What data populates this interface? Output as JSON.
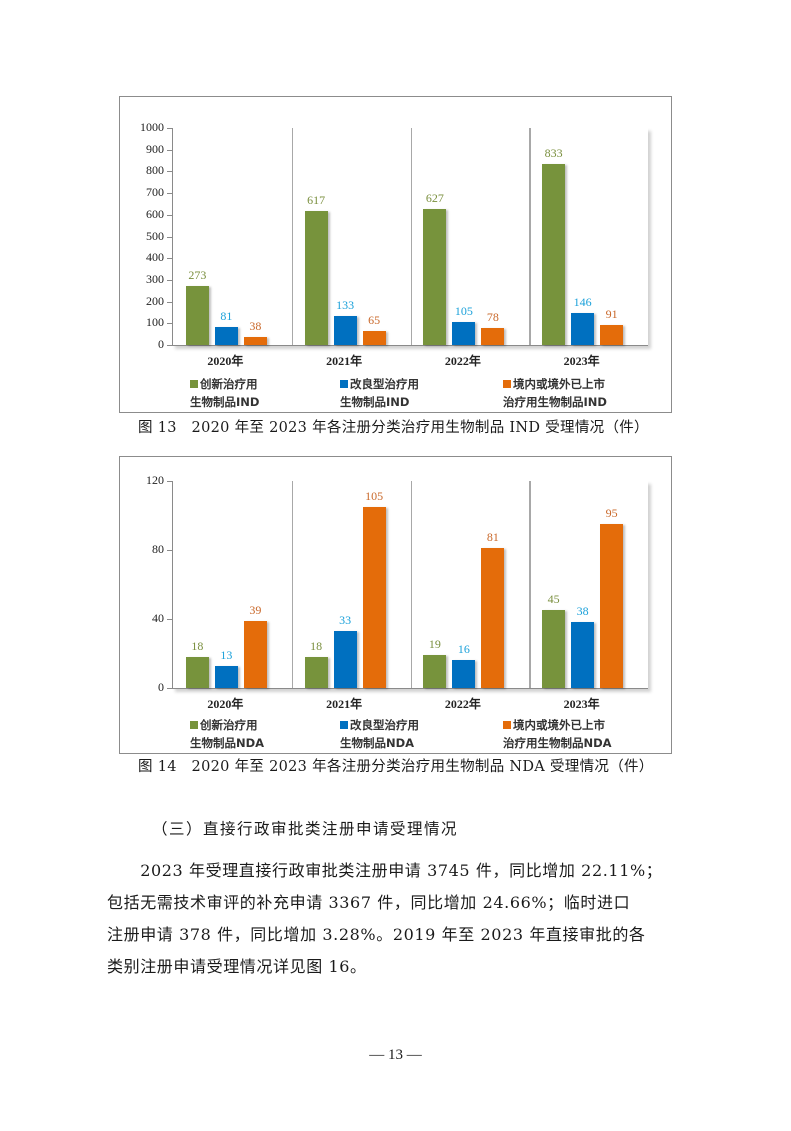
{
  "colors": {
    "series_innovative": "#77933C",
    "series_improved": "#0070C0",
    "series_marketed": "#E46C0A",
    "label_innovative": "#7A8F3E",
    "label_improved": "#1BA1DA",
    "label_marketed": "#C9682A"
  },
  "chart_data": [
    {
      "type": "bar",
      "title": "图 13　2020 年至 2023 年各注册分类治疗用生物制品 IND 受理情况（件）",
      "categories": [
        "2020年",
        "2021年",
        "2022年",
        "2023年"
      ],
      "series": [
        {
          "name": "创新治疗用生物制品IND",
          "values": [
            273,
            617,
            627,
            833
          ]
        },
        {
          "name": "改良型治疗用生物制品IND",
          "values": [
            81,
            133,
            105,
            146
          ]
        },
        {
          "name": "境内或境外已上市治疗用生物制品IND",
          "values": [
            38,
            65,
            78,
            91
          ]
        }
      ],
      "xlabel": "",
      "ylabel": "",
      "ylim": [
        0,
        1000
      ],
      "yticks": [
        "1000",
        "900",
        "800",
        "700",
        "600",
        "500",
        "400",
        "300",
        "200",
        "100",
        "0"
      ],
      "legend_position": "bottom",
      "grid": false
    },
    {
      "type": "bar",
      "title": "图 14　2020 年至 2023 年各注册分类治疗用生物制品 NDA 受理情况（件）",
      "categories": [
        "2020年",
        "2021年",
        "2022年",
        "2023年"
      ],
      "series": [
        {
          "name": "创新治疗用生物制品NDA",
          "values": [
            18,
            18,
            19,
            45
          ]
        },
        {
          "name": "改良型治疗用生物制品NDA",
          "values": [
            13,
            33,
            16,
            38
          ]
        },
        {
          "name": "境内或境外已上市治疗用生物制品NDA",
          "values": [
            39,
            105,
            81,
            95
          ]
        }
      ],
      "xlabel": "",
      "ylabel": "",
      "ylim": [
        0,
        120
      ],
      "yticks": [
        "120",
        "80",
        "40",
        "0"
      ],
      "legend_position": "bottom",
      "grid": false
    }
  ],
  "figure13": {
    "caption": "图 13　2020 年至 2023 年各注册分类治疗用生物制品 IND 受理情况（件）",
    "yticks": [
      "1000",
      "900",
      "800",
      "700",
      "600",
      "500",
      "400",
      "300",
      "200",
      "100",
      "0"
    ],
    "years": [
      "2020年",
      "2021年",
      "2022年",
      "2023年"
    ],
    "values": {
      "innovative": [
        "273",
        "617",
        "627",
        "833"
      ],
      "improved": [
        "81",
        "133",
        "105",
        "146"
      ],
      "marketed": [
        "38",
        "65",
        "78",
        "91"
      ]
    },
    "legend": {
      "innovative_l1": "创新治疗用",
      "innovative_l2": "生物制品IND",
      "improved_l1": "改良型治疗用",
      "improved_l2": "生物制品IND",
      "marketed_l1": "境内或境外已上市",
      "marketed_l2": "治疗用生物制品IND"
    }
  },
  "figure14": {
    "caption": "图 14　2020 年至 2023 年各注册分类治疗用生物制品 NDA 受理情况（件）",
    "yticks": [
      "120",
      "80",
      "40",
      "0"
    ],
    "years": [
      "2020年",
      "2021年",
      "2022年",
      "2023年"
    ],
    "values": {
      "innovative": [
        "18",
        "18",
        "19",
        "45"
      ],
      "improved": [
        "13",
        "33",
        "16",
        "38"
      ],
      "marketed": [
        "39",
        "105",
        "81",
        "95"
      ]
    },
    "legend": {
      "innovative_l1": "创新治疗用",
      "innovative_l2": "生物制品NDA",
      "improved_l1": "改良型治疗用",
      "improved_l2": "生物制品NDA",
      "marketed_l1": "境内或境外已上市",
      "marketed_l2": "治疗用生物制品NDA"
    }
  },
  "section": {
    "heading": "（三）直接行政审批类注册申请受理情况",
    "paragraph_lines": [
      "　　2023 年受理直接行政审批类注册申请 3745 件，同比增加 22.11%；",
      "包括无需技术审评的补充申请 3367 件，同比增加 24.66%；临时进口",
      "注册申请 378 件，同比增加 3.28%。2019 年至 2023 年直接审批的各",
      "类别注册申请受理情况详见图 16。"
    ]
  },
  "page": {
    "number": "— 13 —"
  }
}
